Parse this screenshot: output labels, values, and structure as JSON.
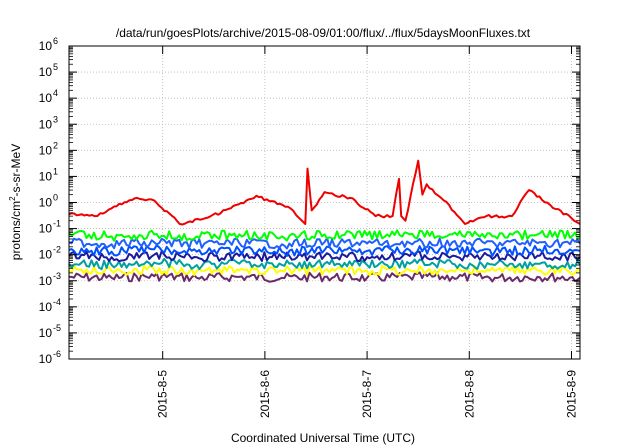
{
  "chart_data": {
    "type": "line",
    "title": "/data/run/goesPlots/archive/2015-08-09/01:00/flux/../flux/5daysMoonFluxes.txt",
    "xlabel": "Coordinated Universal Time (UTC)",
    "ylabel_parts": [
      "protons/cm",
      "2",
      "-s-sr-MeV"
    ],
    "xlim": [
      "2015-08-04T02:00",
      "2015-08-09T02:00"
    ],
    "xticks": [
      "2015-8-5",
      "2015-8-6",
      "2015-8-7",
      "2015-8-8",
      "2015-8-9"
    ],
    "yscale": "log",
    "ylim": [
      1e-06,
      1000000.0
    ],
    "yticks": [
      {
        "base": "10",
        "exp": "-6",
        "value": 1e-06
      },
      {
        "base": "10",
        "exp": "-5",
        "value": 1e-05
      },
      {
        "base": "10",
        "exp": "-4",
        "value": 0.0001
      },
      {
        "base": "10",
        "exp": "-3",
        "value": 0.001
      },
      {
        "base": "10",
        "exp": "-2",
        "value": 0.01
      },
      {
        "base": "10",
        "exp": "-1",
        "value": 0.1
      },
      {
        "base": "10",
        "exp": "0",
        "value": 1
      },
      {
        "base": "10",
        "exp": "1",
        "value": 10
      },
      {
        "base": "10",
        "exp": "2",
        "value": 100
      },
      {
        "base": "10",
        "exp": "3",
        "value": 1000
      },
      {
        "base": "10",
        "exp": "4",
        "value": 10000
      },
      {
        "base": "10",
        "exp": "5",
        "value": 100000
      },
      {
        "base": "10",
        "exp": "6",
        "value": 1000000
      }
    ],
    "grid": true,
    "series": [
      {
        "color": "#6b2a67",
        "x": [
          "2015-08-04T02:00",
          "2015-08-04T12:00",
          "2015-08-04T22:00",
          "2015-08-05T08:00",
          "2015-08-05T18:00",
          "2015-08-06T04:00",
          "2015-08-06T14:00",
          "2015-08-07T00:00",
          "2015-08-07T10:00",
          "2015-08-07T20:00",
          "2015-08-08T06:00",
          "2015-08-08T16:00",
          "2015-08-09T02:00"
        ],
        "values": [
          0.0014,
          0.0013,
          0.0015,
          0.0013,
          0.0014,
          0.0013,
          0.0014,
          0.0013,
          0.0014,
          0.0014,
          0.0013,
          0.0014,
          0.0013
        ]
      },
      {
        "color": "#ffff00",
        "x": [
          "2015-08-04T02:00",
          "2015-08-04T12:00",
          "2015-08-04T22:00",
          "2015-08-05T08:00",
          "2015-08-05T18:00",
          "2015-08-06T04:00",
          "2015-08-06T14:00",
          "2015-08-07T00:00",
          "2015-08-07T10:00",
          "2015-08-07T20:00",
          "2015-08-08T06:00",
          "2015-08-08T16:00",
          "2015-08-09T02:00"
        ],
        "values": [
          0.0025,
          0.0024,
          0.0026,
          0.0024,
          0.0025,
          0.0024,
          0.0025,
          0.0024,
          0.0025,
          0.0025,
          0.0024,
          0.0025,
          0.0024
        ]
      },
      {
        "color": "#00a0a0",
        "x": [
          "2015-08-04T02:00",
          "2015-08-04T12:00",
          "2015-08-04T22:00",
          "2015-08-05T08:00",
          "2015-08-05T18:00",
          "2015-08-06T04:00",
          "2015-08-06T14:00",
          "2015-08-07T00:00",
          "2015-08-07T10:00",
          "2015-08-07T20:00",
          "2015-08-08T06:00",
          "2015-08-08T16:00",
          "2015-08-09T02:00"
        ],
        "values": [
          0.0045,
          0.004,
          0.005,
          0.004,
          0.0045,
          0.004,
          0.0045,
          0.004,
          0.0045,
          0.0045,
          0.004,
          0.0045,
          0.004
        ]
      },
      {
        "color": "#1a1a9a",
        "x": [
          "2015-08-04T02:00",
          "2015-08-04T12:00",
          "2015-08-04T22:00",
          "2015-08-05T08:00",
          "2015-08-05T18:00",
          "2015-08-06T04:00",
          "2015-08-06T14:00",
          "2015-08-07T00:00",
          "2015-08-07T10:00",
          "2015-08-07T20:00",
          "2015-08-08T06:00",
          "2015-08-08T16:00",
          "2015-08-09T02:00"
        ],
        "values": [
          0.009,
          0.008,
          0.01,
          0.008,
          0.009,
          0.008,
          0.009,
          0.008,
          0.009,
          0.009,
          0.008,
          0.009,
          0.008
        ]
      },
      {
        "color": "#0050ff",
        "x": [
          "2015-08-04T02:00",
          "2015-08-04T12:00",
          "2015-08-04T22:00",
          "2015-08-05T08:00",
          "2015-08-05T18:00",
          "2015-08-06T04:00",
          "2015-08-06T14:00",
          "2015-08-07T00:00",
          "2015-08-07T10:00",
          "2015-08-07T20:00",
          "2015-08-08T06:00",
          "2015-08-08T16:00",
          "2015-08-09T02:00"
        ],
        "values": [
          0.015,
          0.013,
          0.016,
          0.013,
          0.015,
          0.013,
          0.015,
          0.014,
          0.015,
          0.015,
          0.013,
          0.015,
          0.014
        ]
      },
      {
        "color": "#2060ff",
        "x": [
          "2015-08-04T02:00",
          "2015-08-04T12:00",
          "2015-08-04T22:00",
          "2015-08-05T08:00",
          "2015-08-05T18:00",
          "2015-08-06T04:00",
          "2015-08-06T14:00",
          "2015-08-07T00:00",
          "2015-08-07T10:00",
          "2015-08-07T20:00",
          "2015-08-08T06:00",
          "2015-08-08T16:00",
          "2015-08-09T02:00"
        ],
        "values": [
          0.03,
          0.025,
          0.03,
          0.026,
          0.028,
          0.025,
          0.03,
          0.027,
          0.028,
          0.03,
          0.026,
          0.028,
          0.027
        ]
      },
      {
        "color": "#00ff00",
        "x": [
          "2015-08-04T02:00",
          "2015-08-04T12:00",
          "2015-08-04T22:00",
          "2015-08-05T08:00",
          "2015-08-05T18:00",
          "2015-08-06T04:00",
          "2015-08-06T14:00",
          "2015-08-07T00:00",
          "2015-08-07T10:00",
          "2015-08-07T20:00",
          "2015-08-08T06:00",
          "2015-08-08T16:00",
          "2015-08-09T02:00"
        ],
        "values": [
          0.07,
          0.05,
          0.06,
          0.05,
          0.06,
          0.05,
          0.06,
          0.055,
          0.06,
          0.06,
          0.05,
          0.06,
          0.055
        ]
      },
      {
        "color": "#ee0000",
        "x": [
          "2015-08-04T02:00",
          "2015-08-04T08:00",
          "2015-08-04T12:00",
          "2015-08-04T18:00",
          "2015-08-04T22:00",
          "2015-08-05T04:00",
          "2015-08-05T10:00",
          "2015-08-05T16:00",
          "2015-08-05T22:00",
          "2015-08-06T06:00",
          "2015-08-06T09:30",
          "2015-08-06T10:00",
          "2015-08-06T11:00",
          "2015-08-06T14:00",
          "2015-08-06T20:00",
          "2015-08-07T02:00",
          "2015-08-07T06:00",
          "2015-08-07T07:30",
          "2015-08-07T08:00",
          "2015-08-07T09:00",
          "2015-08-07T12:00",
          "2015-08-07T13:00",
          "2015-08-07T14:00",
          "2015-08-07T18:00",
          "2015-08-07T23:00",
          "2015-08-08T04:00",
          "2015-08-08T10:00",
          "2015-08-08T14:00",
          "2015-08-08T19:00",
          "2015-08-09T00:00",
          "2015-08-09T02:00"
        ],
        "values": [
          0.35,
          0.3,
          0.6,
          1.5,
          1.2,
          0.15,
          0.25,
          0.6,
          1.8,
          0.6,
          0.15,
          20,
          0.5,
          2.5,
          1.5,
          0.3,
          0.3,
          8,
          0.3,
          0.2,
          40,
          2.0,
          5,
          1.2,
          0.15,
          0.3,
          0.3,
          3.0,
          0.8,
          0.25,
          0.15
        ]
      }
    ]
  }
}
